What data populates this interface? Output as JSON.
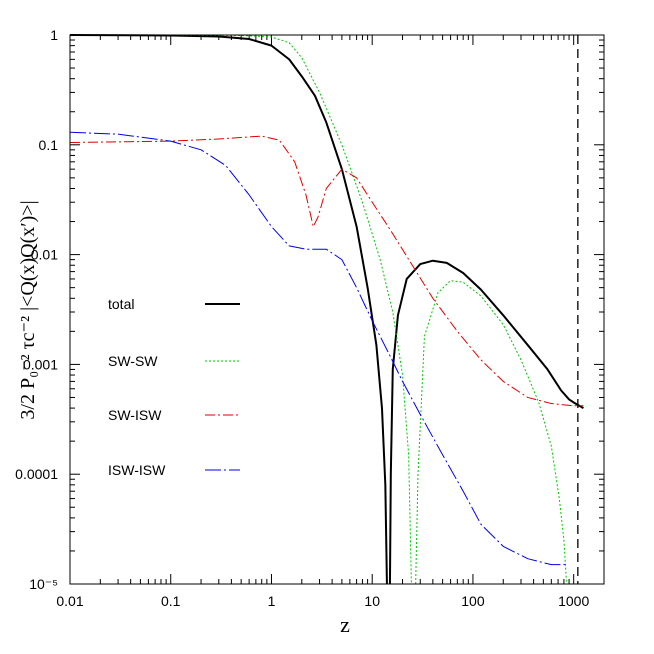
{
  "chart_data": {
    "type": "line",
    "xlabel": "z",
    "ylabel": "3/2 P₀⁻² τc⁻² |<Q(x)Q(x′)>|",
    "xscale": "log",
    "yscale": "log",
    "xlim": [
      0.01,
      2000
    ],
    "ylim": [
      1e-05,
      1
    ],
    "xticks": [
      {
        "v": 0.01,
        "label": "0.01"
      },
      {
        "v": 0.1,
        "label": "0.1"
      },
      {
        "v": 1,
        "label": "1"
      },
      {
        "v": 10,
        "label": "10"
      },
      {
        "v": 100,
        "label": "100"
      },
      {
        "v": 1000,
        "label": "1000"
      }
    ],
    "yticks": [
      {
        "v": 1e-05,
        "label": "10⁻⁵"
      },
      {
        "v": 0.0001,
        "label": "0.0001"
      },
      {
        "v": 0.001,
        "label": "0.001"
      },
      {
        "v": 0.01,
        "label": "0.01"
      },
      {
        "v": 0.1,
        "label": "0.1"
      },
      {
        "v": 1,
        "label": "1"
      }
    ],
    "vline": {
      "x": 1100,
      "style": "dashed",
      "color": "#000000"
    },
    "legend_position": "left",
    "series": [
      {
        "name": "total",
        "color": "#000000",
        "dash": "",
        "width": 2,
        "segments": [
          [
            [
              0.01,
              1.0
            ],
            [
              0.1,
              0.99
            ],
            [
              0.3,
              0.97
            ],
            [
              0.6,
              0.92
            ],
            [
              1.0,
              0.8
            ],
            [
              1.5,
              0.6
            ],
            [
              2.0,
              0.42
            ],
            [
              2.7,
              0.28
            ],
            [
              3.5,
              0.16
            ],
            [
              5,
              0.06
            ],
            [
              7,
              0.018
            ],
            [
              9,
              0.005
            ],
            [
              11,
              0.0015
            ],
            [
              12.5,
              0.0004
            ],
            [
              13.5,
              8e-05
            ],
            [
              14,
              1e-05
            ]
          ],
          [
            [
              15,
              1e-05
            ],
            [
              15.3,
              0.0001
            ],
            [
              16,
              0.0009
            ],
            [
              18,
              0.0028
            ],
            [
              22,
              0.006
            ],
            [
              30,
              0.0082
            ],
            [
              40,
              0.0088
            ],
            [
              55,
              0.0084
            ],
            [
              80,
              0.0068
            ],
            [
              120,
              0.0048
            ],
            [
              200,
              0.0028
            ],
            [
              350,
              0.0015
            ],
            [
              550,
              0.0009
            ],
            [
              750,
              0.00058
            ],
            [
              900,
              0.00048
            ],
            [
              1000,
              0.00045
            ],
            [
              1250,
              0.0004
            ]
          ]
        ]
      },
      {
        "name": "SW-SW",
        "color": "#00c800",
        "dash": "2,2",
        "width": 1,
        "segments": [
          [
            [
              0.01,
              1.0
            ],
            [
              0.1,
              1.0
            ],
            [
              0.5,
              0.99
            ],
            [
              1.0,
              0.96
            ],
            [
              1.5,
              0.85
            ],
            [
              2.0,
              0.62
            ],
            [
              3.0,
              0.3
            ],
            [
              5.0,
              0.1
            ],
            [
              8,
              0.03
            ],
            [
              12,
              0.009
            ],
            [
              16,
              0.003
            ],
            [
              20,
              0.0008
            ],
            [
              23,
              0.00015
            ],
            [
              24.5,
              1e-05
            ]
          ],
          [
            [
              27,
              1e-05
            ],
            [
              28.5,
              0.0001
            ],
            [
              33,
              0.0018
            ],
            [
              45,
              0.0045
            ],
            [
              60,
              0.0058
            ],
            [
              80,
              0.0056
            ],
            [
              120,
              0.0042
            ],
            [
              200,
              0.0023
            ],
            [
              300,
              0.0011
            ],
            [
              450,
              0.00045
            ],
            [
              600,
              0.00018
            ],
            [
              720,
              6e-05
            ],
            [
              800,
              2.5e-05
            ],
            [
              850,
              1e-05
            ]
          ]
        ]
      },
      {
        "name": "SW-ISW",
        "color": "#e00000",
        "dash": "10,3,2,3",
        "width": 1,
        "segments": [
          [
            [
              0.01,
              0.105
            ],
            [
              0.05,
              0.107
            ],
            [
              0.1,
              0.108
            ],
            [
              0.3,
              0.113
            ],
            [
              0.8,
              0.12
            ],
            [
              1.2,
              0.11
            ],
            [
              1.7,
              0.07
            ],
            [
              2.2,
              0.035
            ],
            [
              2.6,
              0.018
            ],
            [
              2.9,
              0.022
            ],
            [
              3.5,
              0.04
            ],
            [
              5,
              0.06
            ],
            [
              7,
              0.05
            ],
            [
              10,
              0.03
            ],
            [
              15,
              0.017
            ],
            [
              25,
              0.008
            ],
            [
              40,
              0.004
            ],
            [
              70,
              0.002
            ],
            [
              120,
              0.0011
            ],
            [
              200,
              0.0007
            ],
            [
              350,
              0.0005
            ],
            [
              600,
              0.00044
            ],
            [
              1000,
              0.00042
            ],
            [
              1250,
              0.00042
            ]
          ]
        ]
      },
      {
        "name": "ISW-ISW",
        "color": "#0000e6",
        "dash": "16,3,2,3",
        "width": 1,
        "segments": [
          [
            [
              0.01,
              0.13
            ],
            [
              0.03,
              0.125
            ],
            [
              0.1,
              0.108
            ],
            [
              0.2,
              0.09
            ],
            [
              0.35,
              0.065
            ],
            [
              0.6,
              0.035
            ],
            [
              1.0,
              0.018
            ],
            [
              1.5,
              0.012
            ],
            [
              2.2,
              0.0112
            ],
            [
              3.5,
              0.0112
            ],
            [
              5,
              0.009
            ],
            [
              7,
              0.005
            ],
            [
              10,
              0.0025
            ],
            [
              15,
              0.0012
            ],
            [
              20,
              0.0007
            ],
            [
              30,
              0.00035
            ],
            [
              50,
              0.00015
            ],
            [
              80,
              7e-05
            ],
            [
              120,
              3.5e-05
            ],
            [
              200,
              2.2e-05
            ],
            [
              350,
              1.7e-05
            ],
            [
              600,
              1.5e-05
            ],
            [
              850,
              1.5e-05
            ]
          ]
        ]
      }
    ]
  }
}
